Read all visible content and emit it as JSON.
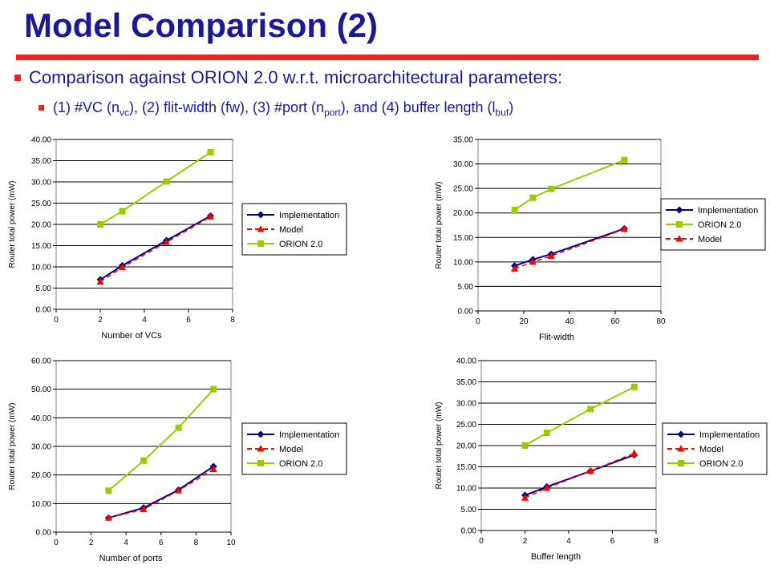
{
  "slide": {
    "title": "Model Comparison (2)",
    "bullet1": "Comparison against ORION 2.0 w.r.t. microarchitectural parameters:",
    "bullet2": {
      "t1": "(1) #VC (n",
      "s1": "vc",
      "t2": "), (2) flit-width (fw), (3) #port (n",
      "s2": "port",
      "t3": "), and (4) buffer length (l",
      "s3": "buf",
      "t4": ")"
    }
  },
  "colors": {
    "title": "#1a1a99",
    "rule": "#e8251f",
    "implementation": "#000080",
    "model": "#ff0000",
    "orion": "#99cc00"
  },
  "chart_data": [
    {
      "type": "line",
      "xlabel": "Number of VCs",
      "ylabel": "Router total power (mW)",
      "xlim": [
        0,
        8
      ],
      "xticks": [
        0,
        2,
        4,
        6,
        8
      ],
      "ylim": [
        0,
        40
      ],
      "yticks": [
        0,
        5,
        10,
        15,
        20,
        25,
        30,
        35,
        40
      ],
      "y_decimals": 2,
      "legend_order": [
        "implementation",
        "model",
        "orion"
      ],
      "series": [
        {
          "key": "implementation",
          "name": "Implementation",
          "x": [
            2,
            3,
            5,
            7
          ],
          "y": [
            7.0,
            10.3,
            16.2,
            22.0
          ]
        },
        {
          "key": "model",
          "name": "Model",
          "x": [
            2,
            3,
            5,
            7
          ],
          "y": [
            6.5,
            9.9,
            15.8,
            21.8
          ]
        },
        {
          "key": "orion",
          "name": "ORION 2.0",
          "x": [
            2,
            3,
            5,
            7
          ],
          "y": [
            20.0,
            23.1,
            30.1,
            37.0
          ]
        }
      ]
    },
    {
      "type": "line",
      "xlabel": "Flit-width",
      "ylabel": "Router total power (mW)",
      "xlim": [
        0,
        80
      ],
      "xticks": [
        0,
        20,
        40,
        60,
        80
      ],
      "ylim": [
        0,
        35
      ],
      "yticks": [
        0,
        5,
        10,
        15,
        20,
        25,
        30,
        35
      ],
      "y_decimals": 2,
      "legend_order": [
        "implementation",
        "orion",
        "model"
      ],
      "series": [
        {
          "key": "implementation",
          "name": "Implementation",
          "x": [
            16,
            24,
            32,
            64
          ],
          "y": [
            9.2,
            10.5,
            11.6,
            16.8
          ]
        },
        {
          "key": "model",
          "name": "Model",
          "x": [
            16,
            24,
            32,
            64
          ],
          "y": [
            8.6,
            10.0,
            11.2,
            16.7
          ]
        },
        {
          "key": "orion",
          "name": "ORION 2.0",
          "x": [
            16,
            24,
            32,
            64
          ],
          "y": [
            20.6,
            23.1,
            24.9,
            30.8
          ]
        }
      ]
    },
    {
      "type": "line",
      "xlabel": "Number of ports",
      "ylabel": "Router total power (mW)",
      "xlim": [
        0,
        10
      ],
      "xticks": [
        0,
        2,
        4,
        6,
        8,
        10
      ],
      "ylim": [
        0,
        60
      ],
      "yticks": [
        0,
        10,
        20,
        30,
        40,
        50,
        60
      ],
      "y_decimals": 2,
      "legend_order": [
        "implementation",
        "model",
        "orion"
      ],
      "series": [
        {
          "key": "implementation",
          "name": "Implementation",
          "x": [
            3,
            5,
            7,
            9
          ],
          "y": [
            5.0,
            8.5,
            14.8,
            23.0
          ]
        },
        {
          "key": "model",
          "name": "Model",
          "x": [
            3,
            5,
            7,
            9
          ],
          "y": [
            5.0,
            8.0,
            14.5,
            22.0
          ]
        },
        {
          "key": "orion",
          "name": "ORION 2.0",
          "x": [
            3,
            5,
            7,
            9
          ],
          "y": [
            14.5,
            25.0,
            36.5,
            50.0
          ]
        }
      ]
    },
    {
      "type": "line",
      "xlabel": "Buffer length",
      "ylabel": "Router total power (mW)",
      "xlim": [
        0,
        8
      ],
      "xticks": [
        0,
        2,
        4,
        6,
        8
      ],
      "ylim": [
        0,
        40
      ],
      "yticks": [
        0,
        5,
        10,
        15,
        20,
        25,
        30,
        35,
        40
      ],
      "y_decimals": 2,
      "legend_order": [
        "implementation",
        "model",
        "orion"
      ],
      "series": [
        {
          "key": "implementation",
          "name": "Implementation",
          "x": [
            2,
            3,
            5,
            7
          ],
          "y": [
            8.3,
            10.3,
            14.0,
            17.8
          ]
        },
        {
          "key": "model",
          "name": "Model",
          "x": [
            2,
            3,
            5,
            7
          ],
          "y": [
            7.7,
            10.0,
            14.0,
            18.2
          ]
        },
        {
          "key": "orion",
          "name": "ORION 2.0",
          "x": [
            2,
            3,
            5,
            7
          ],
          "y": [
            20.0,
            23.0,
            28.6,
            33.8
          ]
        }
      ]
    }
  ]
}
